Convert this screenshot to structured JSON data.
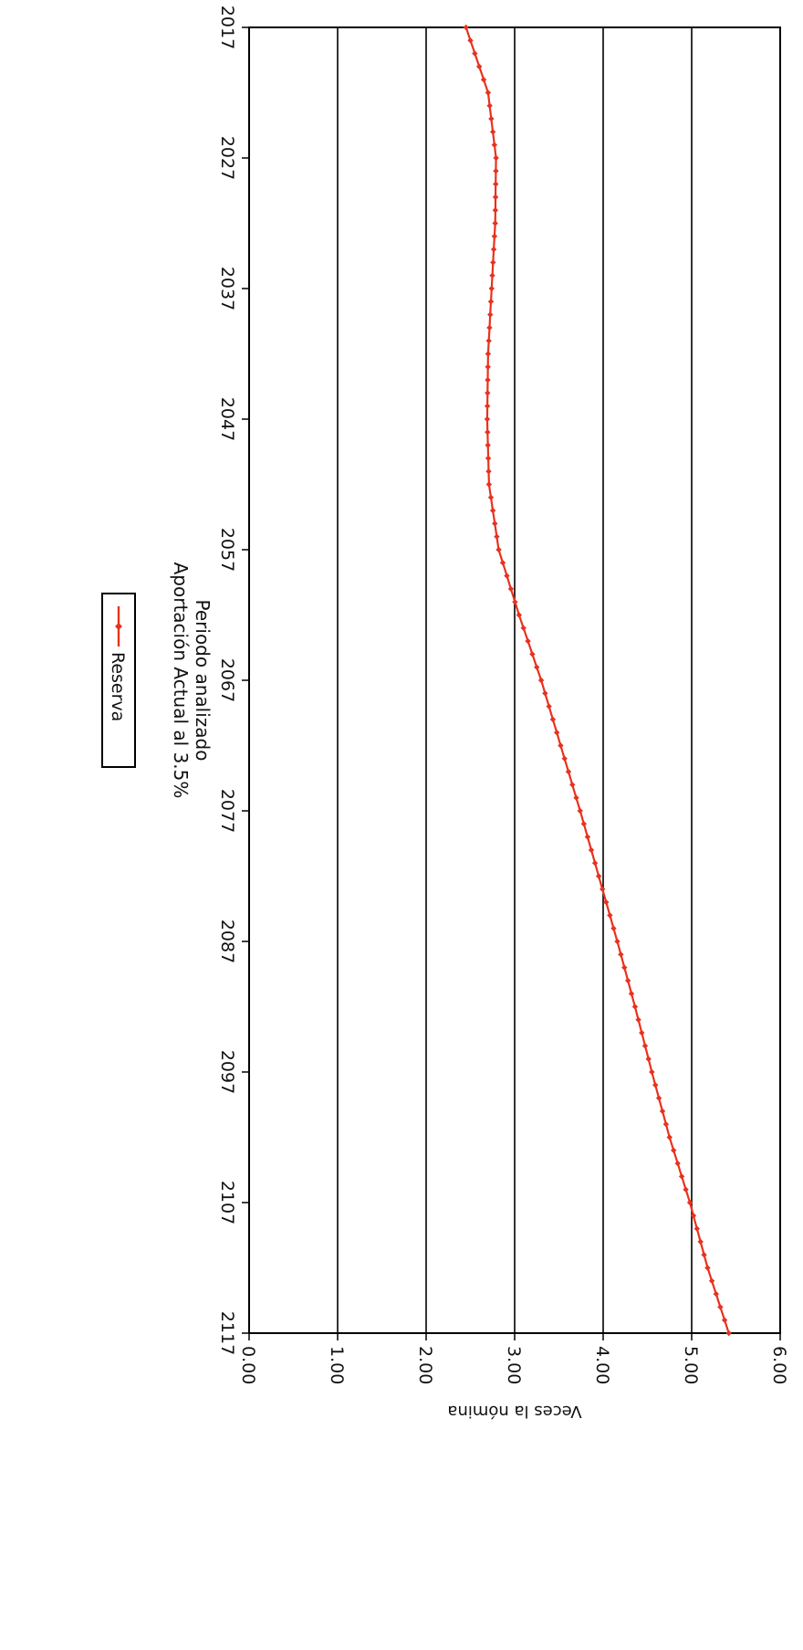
{
  "chart_data": {
    "type": "line",
    "title": "",
    "xlabel": "Periodo analizado\nAportación Actual al 3.5%",
    "ylabel": "Veces la nómina",
    "xlim": [
      2017,
      2117
    ],
    "ylim": [
      0,
      6
    ],
    "x_ticks": [
      "2017",
      "2027",
      "2037",
      "2047",
      "2057",
      "2067",
      "2077",
      "2087",
      "2097",
      "2107",
      "2117"
    ],
    "y_ticks": [
      "0.00",
      "1.00",
      "2.00",
      "3.00",
      "4.00",
      "5.00",
      "6.00"
    ],
    "grid": true,
    "legend_position": "bottom",
    "orientation": "rotated 90° clockwise",
    "series": [
      {
        "name": "Reserva",
        "color": "#e8321e",
        "marker": "diamond",
        "keypoints_x": [
          2017,
          2022,
          2027,
          2032,
          2037,
          2042,
          2047,
          2052,
          2057,
          2062,
          2067,
          2072,
          2077,
          2082,
          2087,
          2092,
          2097,
          2102,
          2107,
          2112,
          2117
        ],
        "keypoints_y": [
          2.45,
          2.7,
          2.79,
          2.78,
          2.74,
          2.7,
          2.69,
          2.71,
          2.82,
          3.05,
          3.3,
          3.52,
          3.74,
          3.95,
          4.16,
          4.36,
          4.55,
          4.75,
          4.98,
          5.18,
          5.42
        ]
      }
    ]
  }
}
